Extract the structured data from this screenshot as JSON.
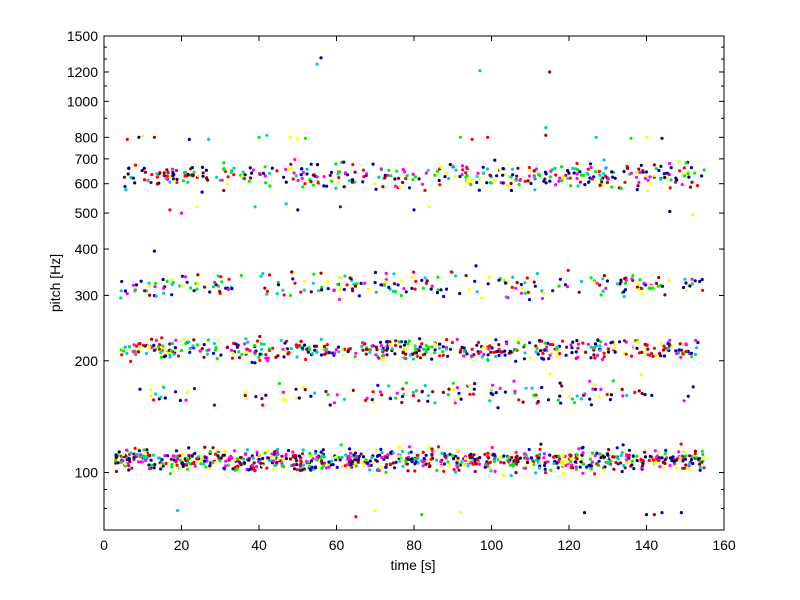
{
  "chart_data": {
    "type": "scatter",
    "title": "",
    "xlabel": "time [s]",
    "ylabel": "pitch [Hz]",
    "xlim": [
      0,
      160
    ],
    "ylim": [
      70,
      1500
    ],
    "y_scale": "log",
    "x_ticks": [
      0,
      20,
      40,
      60,
      80,
      100,
      120,
      140,
      160
    ],
    "y_ticks": [
      100,
      200,
      300,
      400,
      500,
      600,
      700,
      800,
      1000,
      1200,
      1500
    ],
    "grid": false,
    "legend": "none",
    "marker_colors": [
      "#ff0000",
      "#0000cc",
      "#00ee00",
      "#ff00ff",
      "#ffff00",
      "#00cccc",
      "#000080",
      "#990000"
    ],
    "bands": [
      {
        "center": 630,
        "spread": 0.035,
        "x_range": [
          5,
          155
        ]
      },
      {
        "center": 320,
        "spread": 0.035,
        "x_range": [
          4,
          155
        ]
      },
      {
        "center": 215,
        "spread": 0.028,
        "x_range": [
          4,
          155
        ]
      },
      {
        "center": 163,
        "spread": 0.035,
        "x_range": [
          6,
          153
        ]
      },
      {
        "center": 108,
        "spread": 0.03,
        "x_range": [
          3,
          155
        ]
      }
    ],
    "outlier_points": [
      {
        "x": 55,
        "y": 1260
      },
      {
        "x": 56,
        "y": 1310
      },
      {
        "x": 97,
        "y": 1210
      },
      {
        "x": 115,
        "y": 1200
      },
      {
        "x": 6,
        "y": 790
      },
      {
        "x": 9,
        "y": 800
      },
      {
        "x": 10,
        "y": 805
      },
      {
        "x": 13,
        "y": 800
      },
      {
        "x": 22,
        "y": 790
      },
      {
        "x": 27,
        "y": 790
      },
      {
        "x": 40,
        "y": 800
      },
      {
        "x": 42,
        "y": 810
      },
      {
        "x": 48,
        "y": 800
      },
      {
        "x": 50,
        "y": 790
      },
      {
        "x": 52,
        "y": 795
      },
      {
        "x": 92,
        "y": 800
      },
      {
        "x": 95,
        "y": 790
      },
      {
        "x": 99,
        "y": 800
      },
      {
        "x": 114,
        "y": 810
      },
      {
        "x": 127,
        "y": 800
      },
      {
        "x": 136,
        "y": 795
      },
      {
        "x": 140,
        "y": 800
      },
      {
        "x": 144,
        "y": 795
      },
      {
        "x": 114,
        "y": 850
      },
      {
        "x": 17,
        "y": 510
      },
      {
        "x": 20,
        "y": 500
      },
      {
        "x": 24,
        "y": 520
      },
      {
        "x": 39,
        "y": 520
      },
      {
        "x": 47,
        "y": 530
      },
      {
        "x": 50,
        "y": 510
      },
      {
        "x": 61,
        "y": 520
      },
      {
        "x": 80,
        "y": 510
      },
      {
        "x": 84,
        "y": 520
      },
      {
        "x": 146,
        "y": 505
      },
      {
        "x": 152,
        "y": 495
      },
      {
        "x": 13,
        "y": 395
      },
      {
        "x": 19,
        "y": 79
      },
      {
        "x": 65,
        "y": 76
      },
      {
        "x": 70,
        "y": 79
      },
      {
        "x": 82,
        "y": 77
      },
      {
        "x": 92,
        "y": 78
      },
      {
        "x": 124,
        "y": 78
      },
      {
        "x": 140,
        "y": 77
      },
      {
        "x": 142,
        "y": 77
      },
      {
        "x": 144,
        "y": 78
      },
      {
        "x": 149,
        "y": 78
      }
    ]
  }
}
